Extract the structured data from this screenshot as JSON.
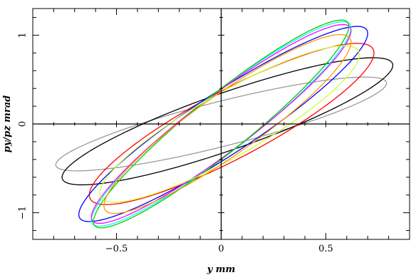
{
  "chart_data": {
    "type": "line",
    "title": "",
    "xlabel": "y mm",
    "ylabel": "py/pz mrad",
    "xlim": [
      -0.9,
      0.9
    ],
    "ylim": [
      -1.3,
      1.3
    ],
    "x_ticks": [
      -0.5,
      0,
      0.5
    ],
    "x_tick_labels": [
      "−0.5",
      "0",
      "0.5"
    ],
    "y_ticks": [
      -1,
      0,
      1
    ],
    "y_tick_labels": [
      "−1",
      "0",
      "1"
    ],
    "zero_lines": true,
    "grid": false,
    "legend": "none",
    "series": [
      {
        "color": "#999999",
        "cx": 0.0,
        "cy": 0.0,
        "xmax": 0.79,
        "y_at_xmax": 0.46,
        "y_intercept": 0.26
      },
      {
        "color": "#000000",
        "cx": 0.03,
        "cy": 0.03,
        "xmax": 0.82,
        "y_at_xmax": 0.66,
        "y_intercept": 0.37
      },
      {
        "color": "#ff0000",
        "cx": 0.05,
        "cy": 0.0,
        "xmax": 0.73,
        "y_at_xmax": 0.8,
        "y_intercept": 0.43
      },
      {
        "color": "#0000ff",
        "cx": 0.01,
        "cy": 0.0,
        "xmax": 0.7,
        "y_at_xmax": 1.02,
        "y_intercept": 0.41
      },
      {
        "color": "#00ffff",
        "cx": 0.0,
        "cy": 0.0,
        "xmax": 0.62,
        "y_at_xmax": 1.08,
        "y_intercept": 0.4
      },
      {
        "color": "#ff00ff",
        "cx": 0.0,
        "cy": 0.0,
        "xmax": 0.62,
        "y_at_xmax": 1.05,
        "y_intercept": 0.39
      },
      {
        "color": "#00cc00",
        "cx": 0.0,
        "cy": 0.0,
        "xmax": 0.61,
        "y_at_xmax": 1.1,
        "y_intercept": 0.4
      },
      {
        "color": "#ccff33",
        "cx": 0.04,
        "cy": 0.0,
        "xmax": 0.66,
        "y_at_xmax": 0.78,
        "y_intercept": 0.41
      },
      {
        "color": "#ff9900",
        "cx": 0.03,
        "cy": 0.0,
        "xmax": 0.62,
        "y_at_xmax": 0.92,
        "y_intercept": 0.41
      }
    ]
  }
}
